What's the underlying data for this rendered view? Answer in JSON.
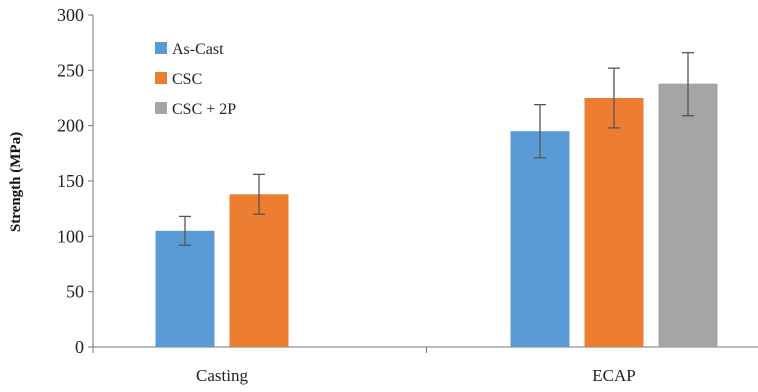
{
  "chart_data": {
    "type": "bar",
    "title": "",
    "xlabel": "",
    "ylabel": "Strength (MPa)",
    "ylim": [
      0,
      300
    ],
    "yticks": [
      0,
      50,
      100,
      150,
      200,
      250,
      300
    ],
    "grid": false,
    "legend_position": "top-left",
    "categories": [
      "Casting",
      "ECAP"
    ],
    "series": [
      {
        "name": "As-Cast",
        "color": "#5b9bd5",
        "values": [
          105,
          195
        ],
        "error": [
          [
            92,
            118
          ],
          [
            171,
            219
          ]
        ]
      },
      {
        "name": "CSC",
        "color": "#ed7d31",
        "values": [
          138,
          225
        ],
        "error": [
          [
            120,
            156
          ],
          [
            198,
            252
          ]
        ]
      },
      {
        "name": "CSC + 2P",
        "color": "#a5a5a5",
        "values": [
          null,
          238
        ],
        "error": [
          null,
          [
            209,
            266
          ]
        ]
      }
    ]
  }
}
